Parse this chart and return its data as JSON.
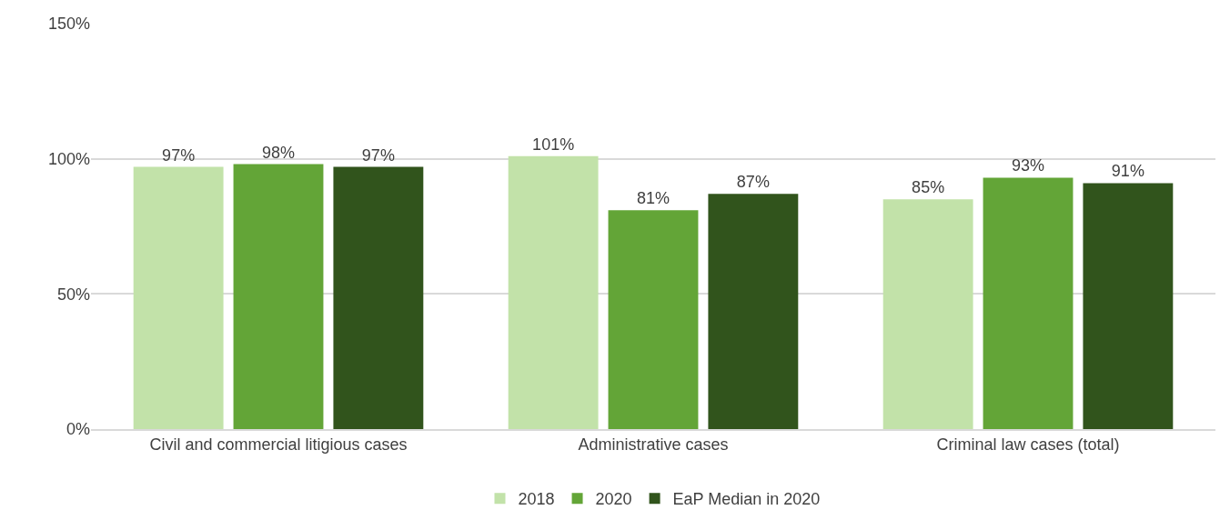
{
  "chart_data": {
    "type": "bar",
    "categories": [
      "Civil and commercial litigious cases",
      "Administrative cases",
      "Criminal law cases (total)"
    ],
    "series": [
      {
        "name": "2018",
        "color": "#c2e2a9",
        "values": [
          97,
          101,
          85
        ],
        "value_labels": [
          "97%",
          "101%",
          "85%"
        ]
      },
      {
        "name": "2020",
        "color": "#63a537",
        "values": [
          98,
          81,
          93
        ],
        "value_labels": [
          "98%",
          "81%",
          "93%"
        ]
      },
      {
        "name": "EaP Median in 2020",
        "color": "#31541c",
        "values": [
          97,
          87,
          91
        ],
        "value_labels": [
          "97%",
          "87%",
          "91%"
        ]
      }
    ],
    "ylim": [
      0,
      150
    ],
    "yticks": [
      {
        "value": 0,
        "label": "0%"
      },
      {
        "value": 50,
        "label": "50%"
      },
      {
        "value": 100,
        "label": "100%"
      },
      {
        "value": 150,
        "label": "150%"
      }
    ],
    "grid": "y",
    "legend": "bottom"
  }
}
